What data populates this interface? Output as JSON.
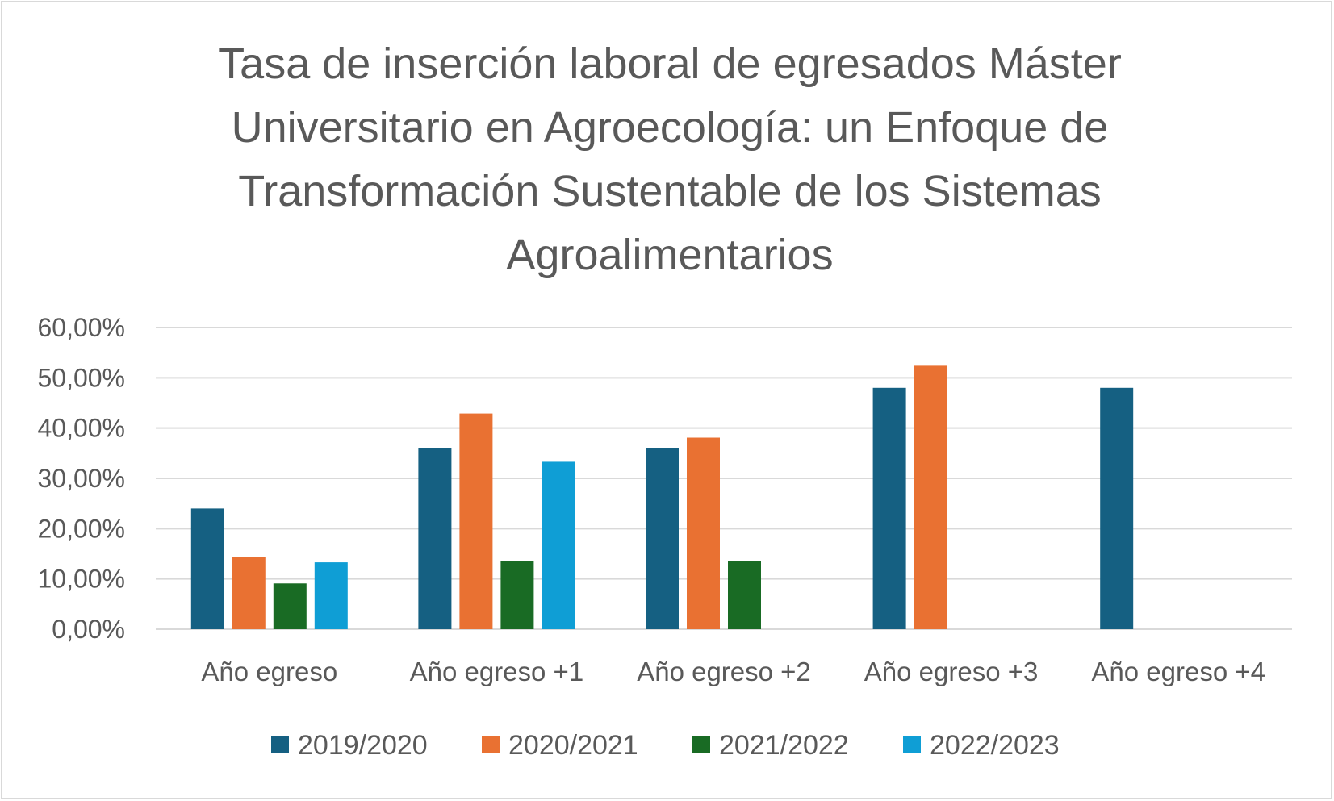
{
  "chart_data": {
    "type": "bar",
    "title_lines": [
      "Tasa de inserción laboral de egresados Máster",
      "Universitario en Agroecología: un Enfoque de",
      "Transformación Sustentable de los Sistemas",
      "Agroalimentarios"
    ],
    "xlabel": "",
    "ylabel": "",
    "ylim": [
      0,
      60
    ],
    "yticks": [
      0,
      10,
      20,
      30,
      40,
      50,
      60
    ],
    "ytick_labels": [
      "0,00%",
      "10,00%",
      "20,00%",
      "30,00%",
      "40,00%",
      "50,00%",
      "60,00%"
    ],
    "grid": true,
    "legend_position": "bottom",
    "categories": [
      "Año egreso",
      "Año egreso +1",
      "Año egreso +2",
      "Año egreso +3",
      "Año egreso +4"
    ],
    "series": [
      {
        "name": "2019/2020",
        "color": "#156082",
        "values": [
          24,
          36,
          36,
          48,
          48
        ]
      },
      {
        "name": "2020/2021",
        "color": "#e97132",
        "values": [
          14.3,
          42.9,
          38.1,
          52.4,
          null
        ]
      },
      {
        "name": "2021/2022",
        "color": "#196b24",
        "values": [
          9.1,
          13.6,
          13.6,
          null,
          null
        ]
      },
      {
        "name": "2022/2023",
        "color": "#0f9ed5",
        "values": [
          13.3,
          33.3,
          null,
          null,
          null
        ]
      }
    ]
  }
}
